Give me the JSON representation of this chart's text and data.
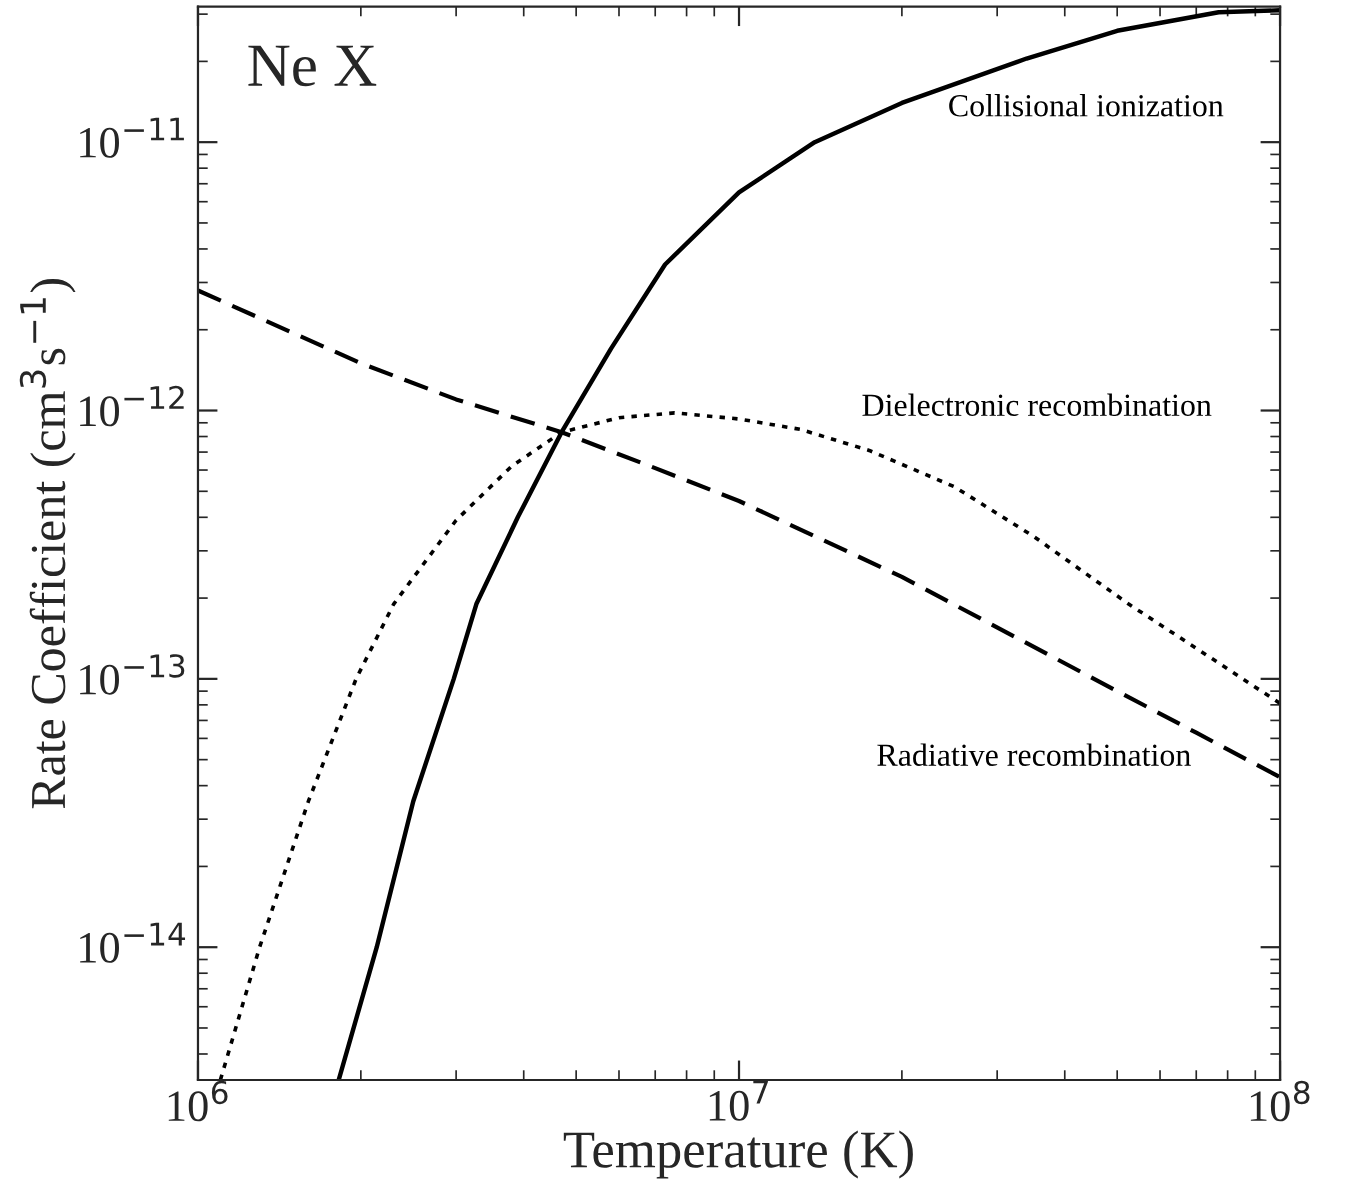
{
  "chart_data": {
    "type": "line",
    "xlabel": "Temperature (K)",
    "ylabel": "Rate Coefficient (cm$^{3}$s$^{−1}$)",
    "log": "xy",
    "grid": false,
    "legend": false,
    "annotations": [
      "Ne X"
    ],
    "xlim": [
      1000000,
      100000000
    ],
    "ylim": [
      3.2e-15,
      3.2e-11
    ],
    "xticks": [
      {
        "value": 1000000,
        "label": "10$^{6}$"
      },
      {
        "value": 10000000,
        "label": "10$^{7}$"
      },
      {
        "value": 100000000,
        "label": "10$^{8}$"
      }
    ],
    "yticks": [
      {
        "value": 1e-14,
        "label": "10$^{−14}$"
      },
      {
        "value": 1e-13,
        "label": "10$^{−13}$"
      },
      {
        "value": 1e-12,
        "label": "10$^{−12}$"
      },
      {
        "value": 1e-11,
        "label": "10$^{−11}$"
      }
    ],
    "series": [
      {
        "name": "Collisional ionization",
        "color": "#000000",
        "line_style": "solid",
        "x": [
          1820000,
          2140000,
          2500000,
          2970000,
          3270000,
          3900000,
          4700000,
          5800000,
          7300000,
          10000000,
          13800000,
          20000000,
          34000000,
          50000000,
          77000000,
          100000000
        ],
        "values": [
          3.2e-15,
          1e-14,
          3.5e-14,
          1e-13,
          1.9e-13,
          4e-13,
          8.3e-13,
          1.7e-12,
          3.5e-12,
          6.5e-12,
          1e-11,
          1.4e-11,
          2.05e-11,
          2.6e-11,
          3.05e-11,
          3.1e-11
        ]
      },
      {
        "name": "Dielectronic recombination",
        "color": "#000000",
        "line_style": "dotted",
        "x": [
          1100000,
          1300000,
          1600000,
          1960000,
          2300000,
          3000000,
          3800000,
          4700000,
          6000000,
          7600000,
          10000000,
          13000000,
          17400000,
          25000000,
          35000000,
          52500000,
          70000000,
          100000000
        ],
        "values": [
          3.2e-15,
          1e-14,
          3.5e-14,
          1e-13,
          1.9e-13,
          3.9e-13,
          6.2e-13,
          8.3e-13,
          9.4e-13,
          9.8e-13,
          9.3e-13,
          8.5e-13,
          7.1e-13,
          5.2e-13,
          3.4e-13,
          1.9e-13,
          1.3e-13,
          8.1e-14
        ]
      },
      {
        "name": "Radiative recombination",
        "color": "#000000",
        "line_style": "dashed",
        "x": [
          1000000,
          2000000,
          3000000,
          4700000,
          7000000,
          10000000,
          20000000,
          50000000,
          70000000,
          100000000
        ],
        "values": [
          2.8e-12,
          1.5e-12,
          1.1e-12,
          8.3e-13,
          6.1e-13,
          4.6e-13,
          2.4e-13,
          9e-14,
          6.3e-14,
          4.3e-14
        ]
      }
    ]
  }
}
